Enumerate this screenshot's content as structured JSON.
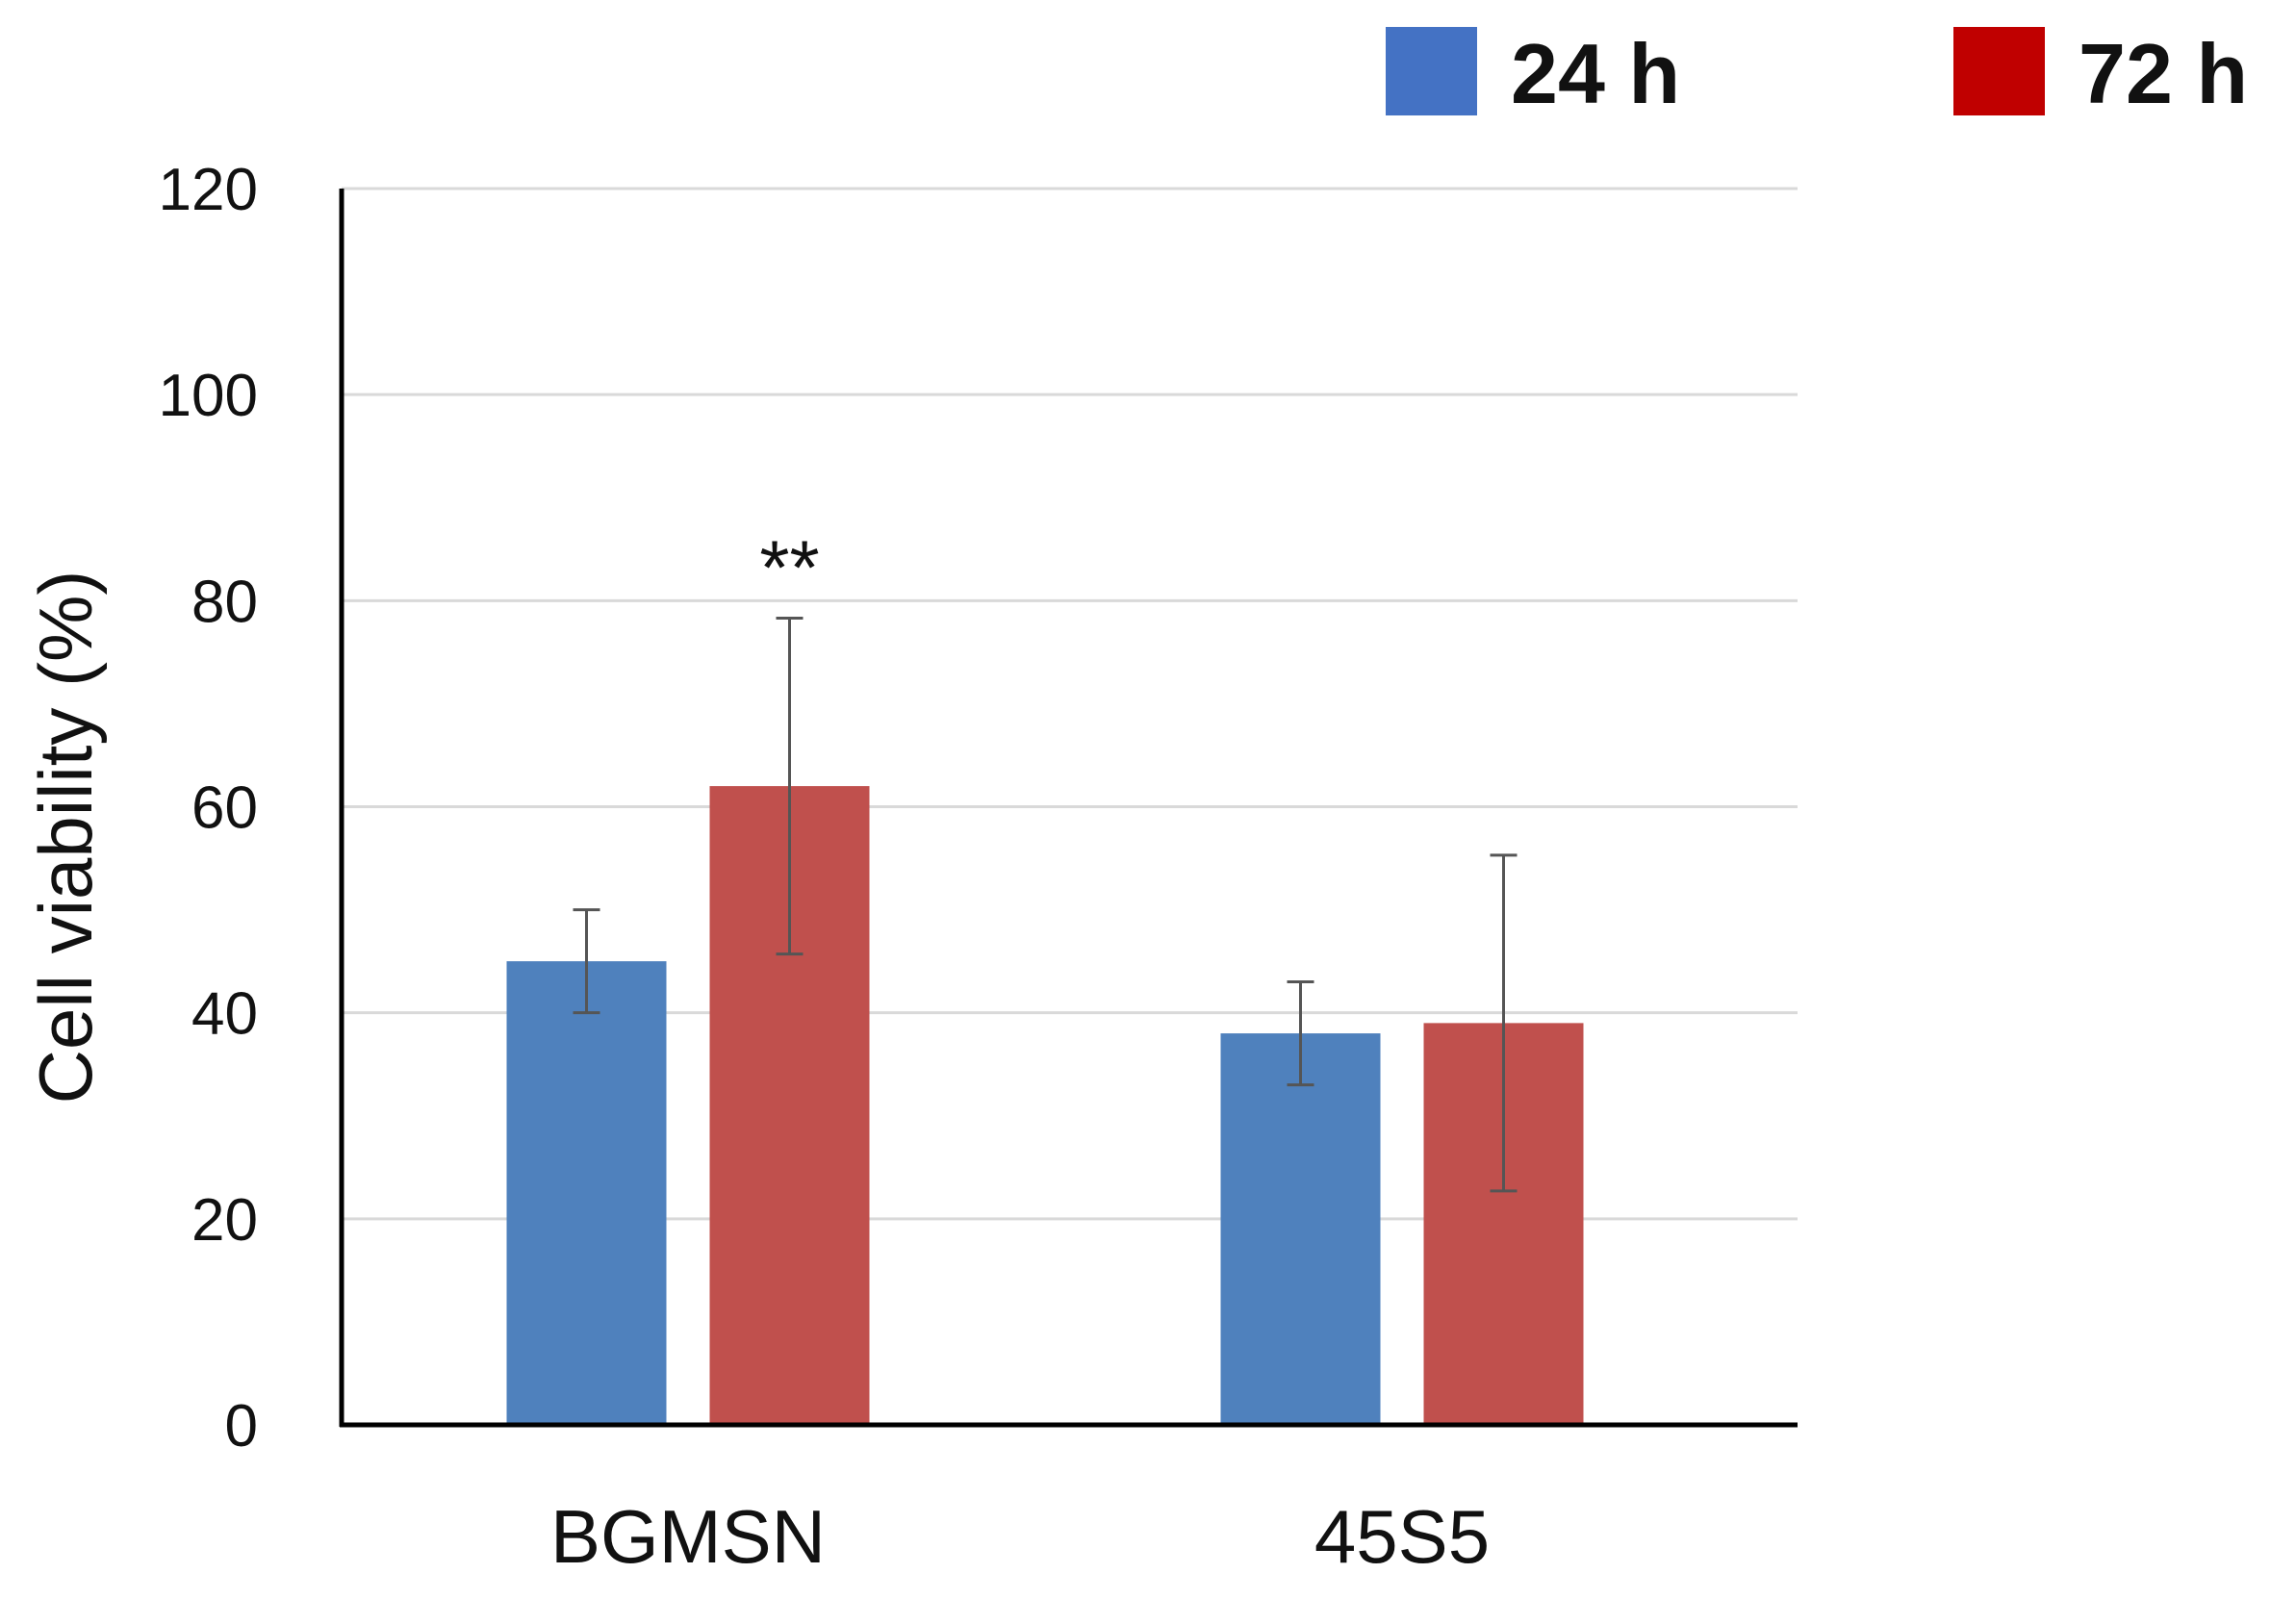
{
  "chart_data": {
    "type": "bar",
    "ylabel": "Cell viability (%)",
    "ylim": [
      0,
      120
    ],
    "yticks": [
      0,
      20,
      40,
      60,
      80,
      100,
      120
    ],
    "grid": true,
    "legend_position": "top-right",
    "categories": [
      "BGMSN",
      "45S5"
    ],
    "series": [
      {
        "name": "24 h",
        "color": "#4f81bd",
        "legend_color": "#4472c4",
        "values": [
          45,
          38
        ],
        "errors": [
          5,
          5
        ]
      },
      {
        "name": "72 h",
        "color": "#c0504d",
        "legend_color": "#c00000",
        "values": [
          62,
          39
        ],
        "errors": [
          16.3,
          16.3
        ]
      }
    ],
    "annotations": [
      {
        "text": "**",
        "category": "BGMSN",
        "series": "72 h"
      }
    ]
  }
}
